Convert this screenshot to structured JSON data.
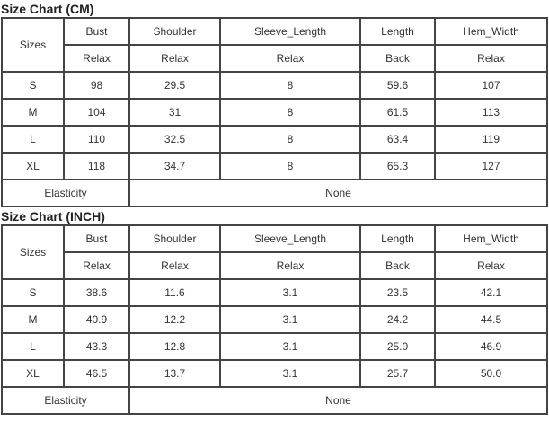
{
  "tables": [
    {
      "title": "Size Chart (CM)",
      "sizes_label": "Sizes",
      "headers": [
        "Bust",
        "Shoulder",
        "Sleeve_Length",
        "Length",
        "Hem_Width"
      ],
      "subheaders": [
        "Relax",
        "Relax",
        "Relax",
        "Back",
        "Relax"
      ],
      "rows": [
        [
          "S",
          "98",
          "29.5",
          "8",
          "59.6",
          "107"
        ],
        [
          "M",
          "104",
          "31",
          "8",
          "61.5",
          "113"
        ],
        [
          "L",
          "110",
          "32.5",
          "8",
          "63.4",
          "119"
        ],
        [
          "XL",
          "118",
          "34.7",
          "8",
          "65.3",
          "127"
        ]
      ],
      "elasticity_label": "Elasticity",
      "elasticity_value": "None"
    },
    {
      "title": "Size Chart (INCH)",
      "sizes_label": "Sizes",
      "headers": [
        "Bust",
        "Shoulder",
        "Sleeve_Length",
        "Length",
        "Hem_Width"
      ],
      "subheaders": [
        "Relax",
        "Relax",
        "Relax",
        "Back",
        "Relax"
      ],
      "rows": [
        [
          "S",
          "38.6",
          "11.6",
          "3.1",
          "23.5",
          "42.1"
        ],
        [
          "M",
          "40.9",
          "12.2",
          "3.1",
          "24.2",
          "44.5"
        ],
        [
          "L",
          "43.3",
          "12.8",
          "3.1",
          "25.0",
          "46.9"
        ],
        [
          "XL",
          "46.5",
          "13.7",
          "3.1",
          "25.7",
          "50.0"
        ]
      ],
      "elasticity_label": "Elasticity",
      "elasticity_value": "None"
    }
  ]
}
